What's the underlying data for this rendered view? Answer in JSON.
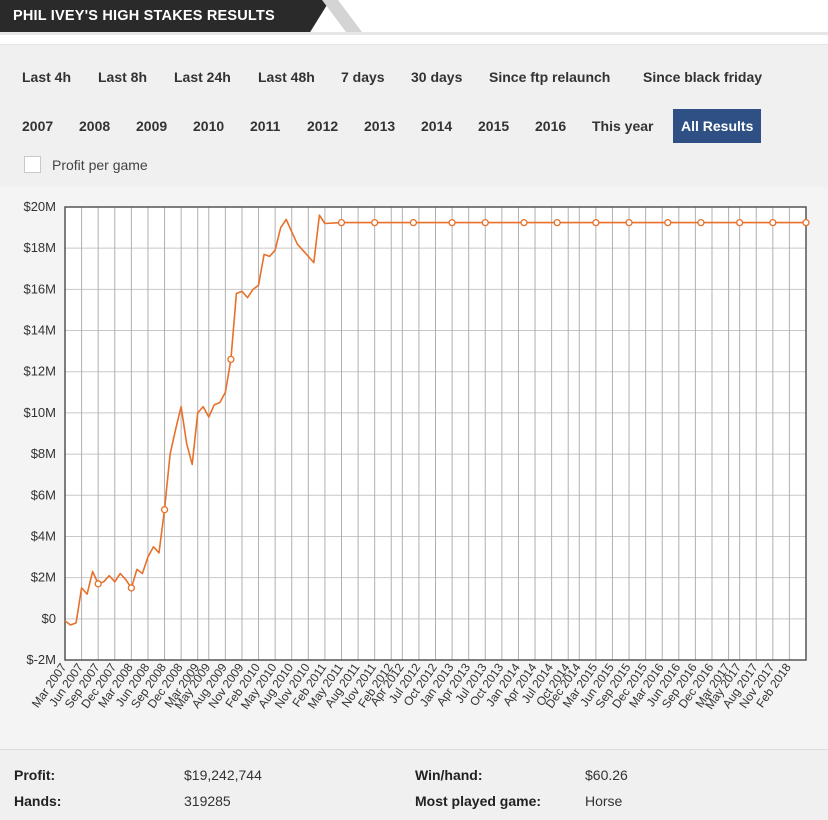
{
  "header": {
    "title": "PHIL IVEY'S HIGH STAKES RESULTS"
  },
  "filters": {
    "row1": [
      "Last 4h",
      "Last 8h",
      "Last 24h",
      "Last 48h",
      "7 days",
      "30 days",
      "Since ftp relaunch",
      "Since black friday"
    ],
    "row2": [
      "2007",
      "2008",
      "2009",
      "2010",
      "2011",
      "2012",
      "2013",
      "2014",
      "2015",
      "2016",
      "This year",
      "All Results"
    ],
    "active": "All Results",
    "checkbox_label": "Profit per game",
    "checkbox_checked": false
  },
  "chart_data": {
    "type": "line",
    "title": "",
    "xlabel": "",
    "ylabel": "",
    "ylim": [
      -2000000,
      20000000
    ],
    "y_ticks": [
      "$-2M",
      "$0",
      "$2M",
      "$4M",
      "$6M",
      "$8M",
      "$10M",
      "$12M",
      "$14M",
      "$16M",
      "$18M",
      "$20M"
    ],
    "x_ticks": [
      "Mar 2007",
      "Jun 2007",
      "Sep 2007",
      "Dec 2007",
      "Mar 2008",
      "Jun 2008",
      "Sep 2008",
      "Dec 2008",
      "Mar 2009",
      "May 2009",
      "Aug 2009",
      "Nov 2009",
      "Feb 2010",
      "May 2010",
      "Aug 2010",
      "Nov 2010",
      "Feb 2011",
      "May 2011",
      "Aug 2011",
      "Nov 2011",
      "Feb 2012",
      "Apr 2012",
      "Jul 2012",
      "Oct 2012",
      "Jan 2013",
      "Apr 2013",
      "Jul 2013",
      "Oct 2013",
      "Jan 2014",
      "Apr 2014",
      "Jul 2014",
      "Oct 2014",
      "Dec 2014",
      "Mar 2015",
      "Jun 2015",
      "Sep 2015",
      "Dec 2015",
      "Mar 2016",
      "Jun 2016",
      "Sep 2016",
      "Dec 2016",
      "Mar 2017",
      "May 2017",
      "Aug 2017",
      "Nov 2017",
      "Feb 2018"
    ],
    "grid": true,
    "legend": "none",
    "line_color": "#e8702a",
    "series": [
      {
        "points": [
          [
            "Mar 2007",
            -0.1
          ],
          [
            "Apr 2007",
            -0.3
          ],
          [
            "May 2007",
            -0.2
          ],
          [
            "Jun 2007",
            1.5
          ],
          [
            "Jul 2007",
            1.2
          ],
          [
            "Aug 2007",
            2.3
          ],
          [
            "Sep 2007",
            1.7
          ],
          [
            "Oct 2007",
            1.8
          ],
          [
            "Nov 2007",
            2.1
          ],
          [
            "Dec 2007",
            1.8
          ],
          [
            "Jan 2008",
            2.2
          ],
          [
            "Feb 2008",
            1.9
          ],
          [
            "Mar 2008",
            1.5
          ],
          [
            "Apr 2008",
            2.4
          ],
          [
            "May 2008",
            2.2
          ],
          [
            "Jun 2008",
            3.0
          ],
          [
            "Jul 2008",
            3.5
          ],
          [
            "Aug 2008",
            3.2
          ],
          [
            "Sep 2008",
            5.3
          ],
          [
            "Oct 2008",
            8.0
          ],
          [
            "Nov 2008",
            9.2
          ],
          [
            "Dec 2008",
            10.3
          ],
          [
            "Jan 2009",
            8.5
          ],
          [
            "Feb 2009",
            7.5
          ],
          [
            "Mar 2009",
            10.0
          ],
          [
            "Apr 2009",
            10.3
          ],
          [
            "May 2009",
            9.8
          ],
          [
            "Jun 2009",
            10.4
          ],
          [
            "Jul 2009",
            10.5
          ],
          [
            "Aug 2009",
            11.0
          ],
          [
            "Sep 2009",
            12.6
          ],
          [
            "Oct 2009",
            15.8
          ],
          [
            "Nov 2009",
            15.9
          ],
          [
            "Dec 2009",
            15.6
          ],
          [
            "Jan 2010",
            16.0
          ],
          [
            "Feb 2010",
            16.2
          ],
          [
            "Mar 2010",
            17.7
          ],
          [
            "Apr 2010",
            17.6
          ],
          [
            "May 2010",
            17.9
          ],
          [
            "Jun 2010",
            19.0
          ],
          [
            "Jul 2010",
            19.4
          ],
          [
            "Aug 2010",
            18.8
          ],
          [
            "Sep 2010",
            18.2
          ],
          [
            "Oct 2010",
            17.9
          ],
          [
            "Nov 2010",
            17.6
          ],
          [
            "Dec 2010",
            17.3
          ],
          [
            "Jan 2011",
            19.6
          ],
          [
            "Feb 2011",
            19.2
          ],
          [
            "May 2011",
            19.24
          ],
          [
            "Nov 2011",
            19.24
          ],
          [
            "Jun 2012",
            19.24
          ],
          [
            "Jan 2013",
            19.24
          ],
          [
            "Jul 2013",
            19.24
          ],
          [
            "Feb 2014",
            19.24
          ],
          [
            "Aug 2014",
            19.24
          ],
          [
            "Mar 2015",
            19.24
          ],
          [
            "Sep 2015",
            19.24
          ],
          [
            "Apr 2016",
            19.24
          ],
          [
            "Oct 2016",
            19.24
          ],
          [
            "May 2017",
            19.24
          ],
          [
            "Nov 2017",
            19.24
          ],
          [
            "May 2018",
            19.24
          ]
        ],
        "unit": "$M"
      }
    ]
  },
  "stats": {
    "profit_label": "Profit:",
    "profit_value": "$19,242,744",
    "hands_label": "Hands:",
    "hands_value": "319285",
    "winhand_label": "Win/hand:",
    "winhand_value": "$60.26",
    "game_label": "Most played game:",
    "game_value": "Horse"
  }
}
